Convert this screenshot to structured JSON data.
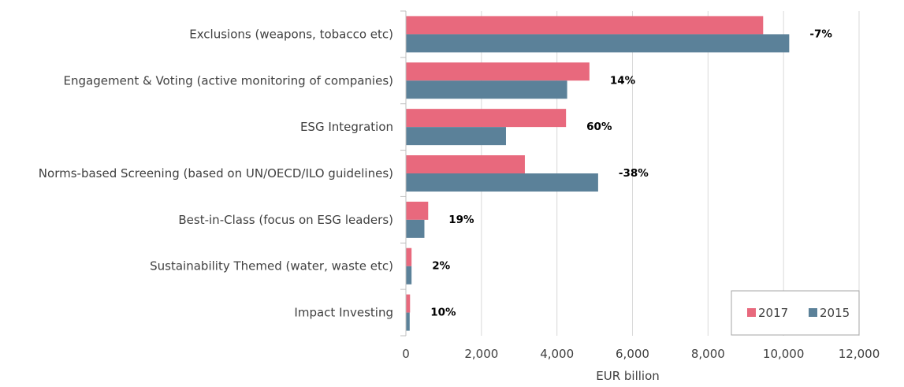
{
  "chart_data": {
    "type": "bar",
    "orientation": "horizontal",
    "categories": [
      "Exclusions (weapons, tobacco etc)",
      "Engagement & Voting (active monitoring of companies)",
      "ESG Integration",
      "Norms-based Screening (based on UN/OECD/ILO guidelines)",
      "Best-in-Class (focus on ESG leaders)",
      "Sustainability Themed (water, waste etc)",
      "Impact Investing"
    ],
    "series": [
      {
        "name": "2017",
        "color": "#e8697d",
        "values": [
          9460,
          4860,
          4240,
          3150,
          590,
          150,
          110
        ]
      },
      {
        "name": "2015",
        "color": "#5b8199",
        "values": [
          10150,
          4270,
          2650,
          5090,
          490,
          150,
          100
        ]
      }
    ],
    "data_labels": [
      "-7%",
      "14%",
      "60%",
      "-38%",
      "19%",
      "2%",
      "10%"
    ],
    "xlabel": "EUR billion",
    "xlim": [
      0,
      12000
    ],
    "xticks": [
      "0",
      "2,000",
      "4,000",
      "6,000",
      "8,000",
      "10,000",
      "12,000"
    ],
    "xtick_values": [
      0,
      2000,
      4000,
      6000,
      8000,
      10000,
      12000
    ],
    "grid": "vertical",
    "legend": {
      "position": "bottom-right",
      "entries": [
        "2017",
        "2015"
      ]
    }
  }
}
